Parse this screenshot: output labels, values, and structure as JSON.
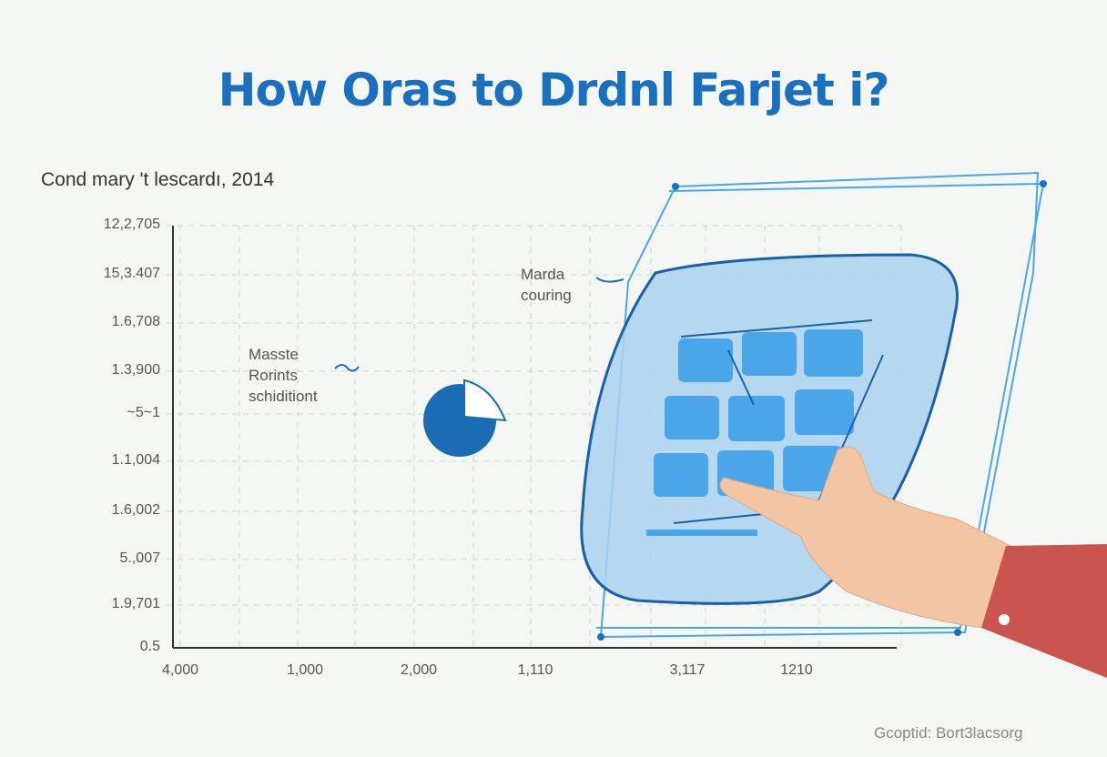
{
  "title": "How Oras to Drdnl Farjet i?",
  "chart_data": {
    "type": "scatter",
    "title": "Cond mary 't lescardı, 2014",
    "y_tick_labels": [
      "12,2,705",
      "15,3.407",
      "1.6,708",
      "1.3,900",
      "~5~1",
      "1.1,004",
      "1.6,002",
      "5.,007",
      "1.9,701",
      "0.5"
    ],
    "x_tick_labels": [
      "4,000",
      "1,000",
      "2,000",
      "1,110",
      "3,117",
      "1210"
    ],
    "grid": true,
    "annotations": [
      "Masste Rorints schiditiont",
      "Marda couring"
    ],
    "colors": {
      "accent": "#1a6fbf",
      "panel": "#a9d2f0",
      "tile": "#4aa6e8",
      "sleeve": "#c9554e"
    }
  },
  "notes": {
    "left": [
      "Masste",
      "Rorints",
      "schiditiont"
    ],
    "right": [
      "Marda",
      "couring"
    ]
  },
  "credit": "Gcoptid: Bort3lacsorg"
}
